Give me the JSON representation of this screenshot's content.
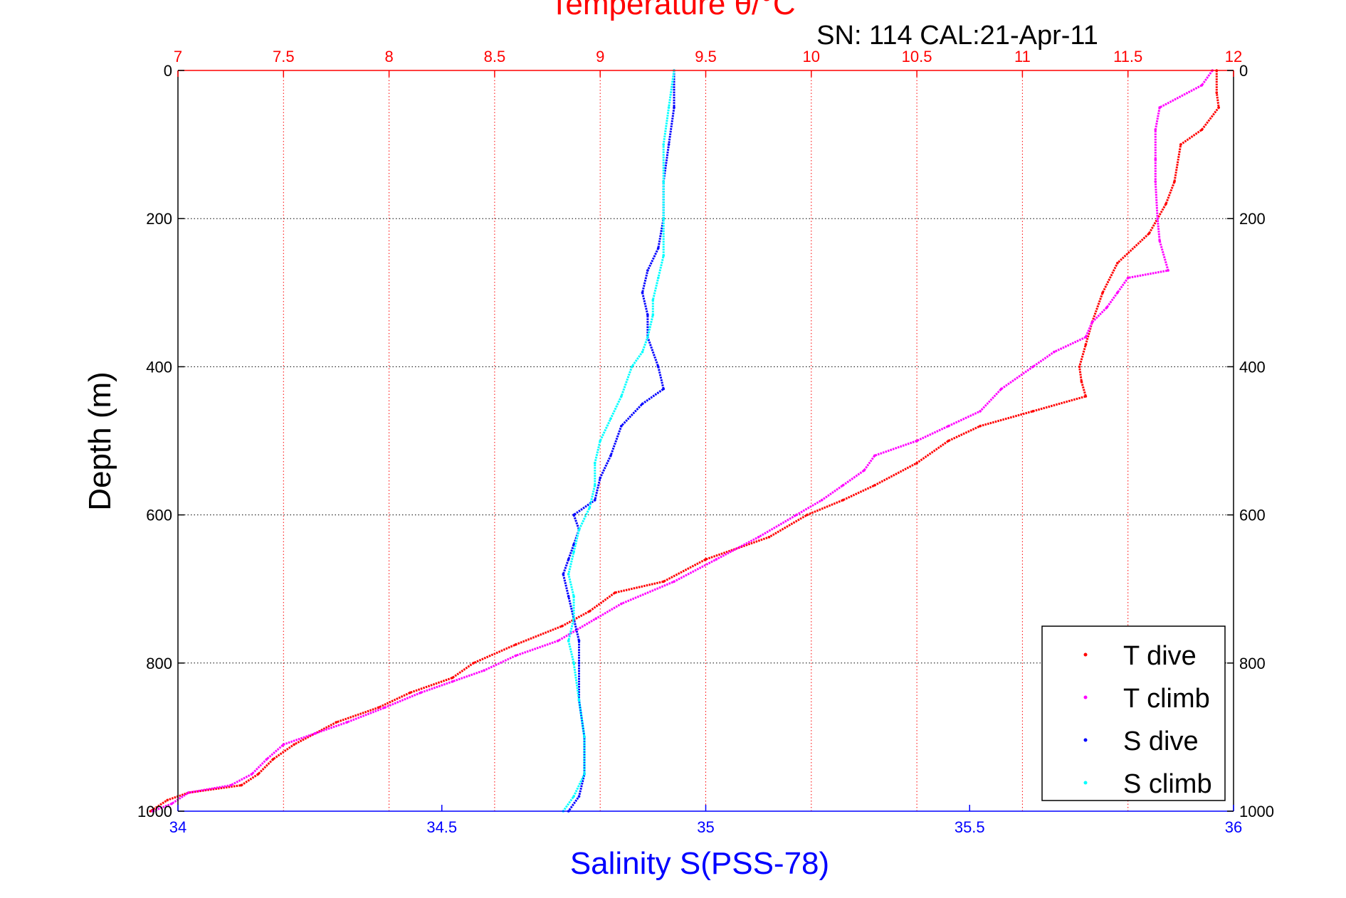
{
  "chart_data": {
    "type": "scatter",
    "title": "Temperature θ/°C",
    "subtitle": "SN: 114  CAL:21-Apr-11",
    "xlabel": "Salinity S(PSS-78)",
    "ylabel": "Depth (m)",
    "top_axis": {
      "label": "Temperature θ/°C",
      "range": [
        7,
        12
      ],
      "ticks": [
        "7",
        "7.5",
        "8",
        "8.5",
        "9",
        "9.5",
        "10",
        "10.5",
        "11",
        "11.5",
        "12"
      ],
      "color": "#ff0000"
    },
    "bottom_axis": {
      "label": "Salinity S(PSS-78)",
      "range": [
        34,
        36
      ],
      "ticks": [
        "34",
        "34.5",
        "35",
        "35.5",
        "36"
      ],
      "color": "#0000ff"
    },
    "y_axis": {
      "range": [
        0,
        1000
      ],
      "reversed": true,
      "ticks": [
        "0",
        "200",
        "400",
        "600",
        "800",
        "1000"
      ]
    },
    "grid": true,
    "legend_position": "bottom-right",
    "series": [
      {
        "name": "T dive",
        "axis": "temperature",
        "color": "#ff0000",
        "points": [
          [
            11.92,
            0
          ],
          [
            11.92,
            30
          ],
          [
            11.93,
            50
          ],
          [
            11.85,
            80
          ],
          [
            11.75,
            100
          ],
          [
            11.72,
            150
          ],
          [
            11.68,
            180
          ],
          [
            11.6,
            220
          ],
          [
            11.45,
            260
          ],
          [
            11.38,
            300
          ],
          [
            11.33,
            340
          ],
          [
            11.3,
            370
          ],
          [
            11.27,
            400
          ],
          [
            11.28,
            420
          ],
          [
            11.3,
            440
          ],
          [
            11.05,
            460
          ],
          [
            10.8,
            480
          ],
          [
            10.65,
            500
          ],
          [
            10.5,
            530
          ],
          [
            10.3,
            560
          ],
          [
            10.15,
            580
          ],
          [
            9.98,
            600
          ],
          [
            9.8,
            630
          ],
          [
            9.5,
            660
          ],
          [
            9.3,
            690
          ],
          [
            9.07,
            705
          ],
          [
            8.95,
            730
          ],
          [
            8.82,
            750
          ],
          [
            8.6,
            775
          ],
          [
            8.4,
            800
          ],
          [
            8.3,
            820
          ],
          [
            8.1,
            840
          ],
          [
            7.95,
            860
          ],
          [
            7.75,
            880
          ],
          [
            7.65,
            895
          ],
          [
            7.55,
            910
          ],
          [
            7.45,
            930
          ],
          [
            7.38,
            950
          ],
          [
            7.3,
            965
          ],
          [
            7.05,
            975
          ],
          [
            6.95,
            985
          ],
          [
            6.87,
            1000
          ]
        ]
      },
      {
        "name": "T climb",
        "axis": "temperature",
        "color": "#ff00ff",
        "points": [
          [
            11.9,
            0
          ],
          [
            11.85,
            20
          ],
          [
            11.65,
            50
          ],
          [
            11.63,
            80
          ],
          [
            11.63,
            120
          ],
          [
            11.63,
            150
          ],
          [
            11.64,
            200
          ],
          [
            11.65,
            230
          ],
          [
            11.69,
            270
          ],
          [
            11.5,
            280
          ],
          [
            11.45,
            300
          ],
          [
            11.4,
            320
          ],
          [
            11.33,
            340
          ],
          [
            11.3,
            360
          ],
          [
            11.15,
            380
          ],
          [
            11.05,
            400
          ],
          [
            10.9,
            430
          ],
          [
            10.8,
            460
          ],
          [
            10.65,
            480
          ],
          [
            10.5,
            500
          ],
          [
            10.3,
            520
          ],
          [
            10.25,
            540
          ],
          [
            10.15,
            560
          ],
          [
            10.05,
            580
          ],
          [
            9.93,
            600
          ],
          [
            9.75,
            630
          ],
          [
            9.55,
            660
          ],
          [
            9.35,
            690
          ],
          [
            9.1,
            720
          ],
          [
            8.98,
            740
          ],
          [
            8.8,
            770
          ],
          [
            8.6,
            790
          ],
          [
            8.45,
            810
          ],
          [
            8.3,
            825
          ],
          [
            8.15,
            840
          ],
          [
            7.98,
            860
          ],
          [
            7.8,
            880
          ],
          [
            7.65,
            895
          ],
          [
            7.5,
            910
          ],
          [
            7.42,
            930
          ],
          [
            7.35,
            950
          ],
          [
            7.25,
            965
          ],
          [
            7.05,
            975
          ],
          [
            6.97,
            990
          ],
          [
            6.88,
            1000
          ]
        ]
      },
      {
        "name": "S dive",
        "axis": "salinity",
        "color": "#0000ff",
        "points": [
          [
            34.94,
            0
          ],
          [
            34.94,
            50
          ],
          [
            34.93,
            100
          ],
          [
            34.92,
            150
          ],
          [
            34.92,
            200
          ],
          [
            34.91,
            240
          ],
          [
            34.89,
            270
          ],
          [
            34.88,
            300
          ],
          [
            34.89,
            330
          ],
          [
            34.89,
            360
          ],
          [
            34.91,
            400
          ],
          [
            34.92,
            430
          ],
          [
            34.88,
            450
          ],
          [
            34.84,
            480
          ],
          [
            34.82,
            520
          ],
          [
            34.8,
            550
          ],
          [
            34.79,
            580
          ],
          [
            34.75,
            600
          ],
          [
            34.76,
            620
          ],
          [
            34.75,
            640
          ],
          [
            34.74,
            660
          ],
          [
            34.73,
            680
          ],
          [
            34.74,
            710
          ],
          [
            34.75,
            740
          ],
          [
            34.76,
            770
          ],
          [
            34.76,
            800
          ],
          [
            34.76,
            850
          ],
          [
            34.77,
            900
          ],
          [
            34.77,
            950
          ],
          [
            34.76,
            980
          ],
          [
            34.74,
            1000
          ]
        ]
      },
      {
        "name": "S climb",
        "axis": "salinity",
        "color": "#00ffff",
        "points": [
          [
            34.94,
            0
          ],
          [
            34.93,
            50
          ],
          [
            34.92,
            100
          ],
          [
            34.92,
            150
          ],
          [
            34.92,
            200
          ],
          [
            34.92,
            250
          ],
          [
            34.91,
            280
          ],
          [
            34.9,
            310
          ],
          [
            34.9,
            330
          ],
          [
            34.89,
            360
          ],
          [
            34.88,
            380
          ],
          [
            34.86,
            400
          ],
          [
            34.84,
            440
          ],
          [
            34.82,
            470
          ],
          [
            34.8,
            500
          ],
          [
            34.79,
            530
          ],
          [
            34.79,
            560
          ],
          [
            34.78,
            590
          ],
          [
            34.76,
            620
          ],
          [
            34.75,
            650
          ],
          [
            34.74,
            680
          ],
          [
            34.75,
            710
          ],
          [
            34.75,
            740
          ],
          [
            34.74,
            770
          ],
          [
            34.75,
            800
          ],
          [
            34.76,
            850
          ],
          [
            34.77,
            900
          ],
          [
            34.77,
            950
          ],
          [
            34.75,
            980
          ],
          [
            34.73,
            1000
          ]
        ]
      }
    ]
  }
}
